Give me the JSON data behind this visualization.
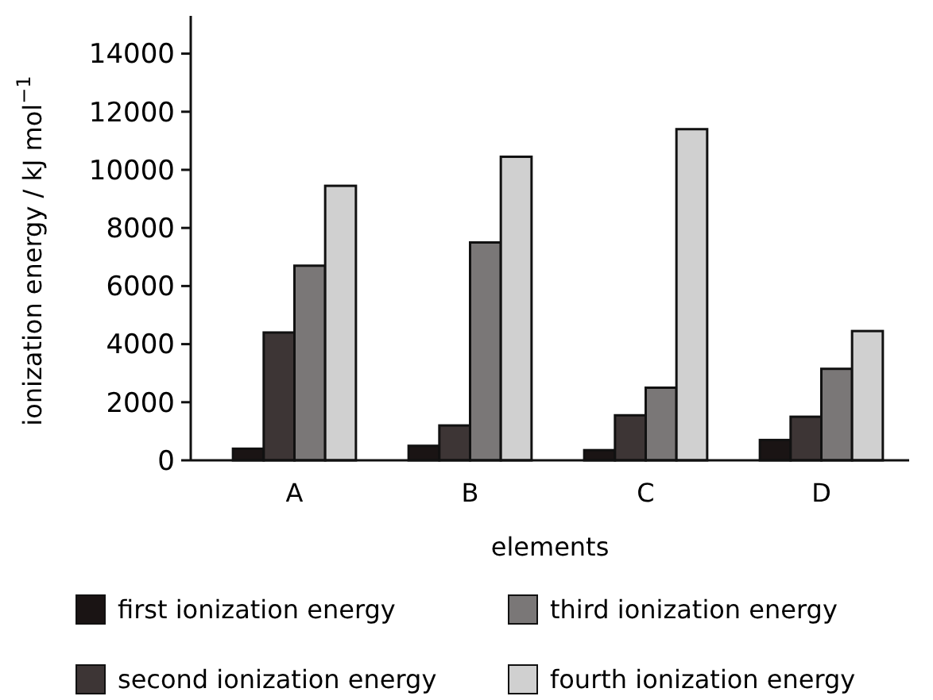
{
  "chart_data": {
    "type": "bar",
    "xlabel": "elements",
    "ylabel": "ionization energy / kJ mol$^{−1}$",
    "categories": [
      "A",
      "B",
      "C",
      "D"
    ],
    "series": [
      {
        "name": "first ionization energy",
        "color": "#1a1414",
        "values": [
          400,
          500,
          350,
          700
        ]
      },
      {
        "name": "second ionization energy",
        "color": "#3d3535",
        "values": [
          4400,
          1200,
          1550,
          1500
        ]
      },
      {
        "name": "third ionization energy",
        "color": "#7a7777",
        "values": [
          6700,
          7500,
          2500,
          3150
        ]
      },
      {
        "name": "fourth ionization energy",
        "color": "#d0d0d0",
        "values": [
          9450,
          10450,
          11400,
          4450
        ]
      }
    ],
    "ylim": [
      0,
      15300
    ],
    "yticks": [
      0,
      2000,
      4000,
      6000,
      8000,
      10000,
      12000,
      14000
    ],
    "grid": false,
    "legend": "bottom"
  }
}
